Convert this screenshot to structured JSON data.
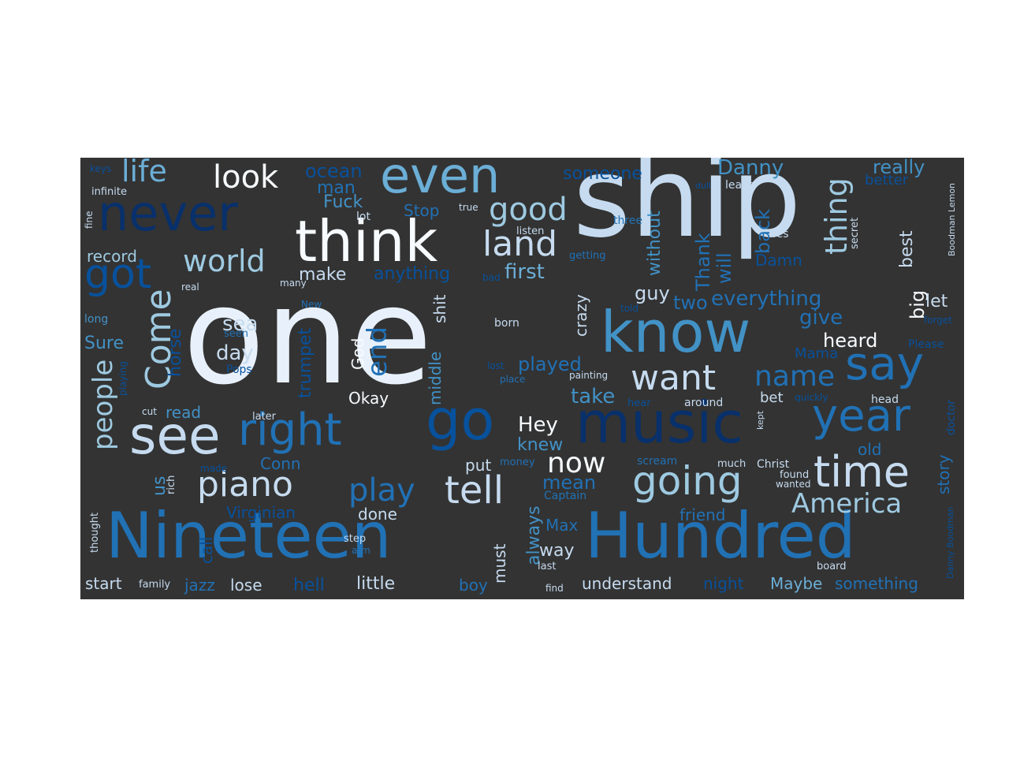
{
  "background": "#333333",
  "palette": {
    "a": "#e8f1fb",
    "b": "#c6dbef",
    "c": "#9ecae1",
    "d": "#6baed6",
    "e": "#4292c6",
    "f": "#2171b5",
    "g": "#08519c",
    "h": "#08306b",
    "w": "#f7fbff"
  },
  "words": [
    {
      "text": "one",
      "s": 170,
      "c": "a"
    },
    {
      "text": "ship",
      "s": 140,
      "c": "b"
    },
    {
      "text": "Nineteen",
      "s": 80,
      "c": "f"
    },
    {
      "text": "Hundred",
      "s": 80,
      "c": "f"
    },
    {
      "text": "think",
      "s": 72,
      "c": "w"
    },
    {
      "text": "music",
      "s": 72,
      "c": "h"
    },
    {
      "text": "know",
      "s": 72,
      "c": "e"
    },
    {
      "text": "never",
      "s": 62,
      "c": "h"
    },
    {
      "text": "even",
      "s": 62,
      "c": "d"
    },
    {
      "text": "go",
      "s": 70,
      "c": "g"
    },
    {
      "text": "see",
      "s": 66,
      "c": "b"
    },
    {
      "text": "right",
      "s": 56,
      "c": "f"
    },
    {
      "text": "year",
      "s": 56,
      "c": "f"
    },
    {
      "text": "say",
      "s": 58,
      "c": "f"
    },
    {
      "text": "time",
      "s": 54,
      "c": "b"
    },
    {
      "text": "going",
      "s": 50,
      "c": "c"
    },
    {
      "text": "tell",
      "s": 48,
      "c": "b"
    },
    {
      "text": "got",
      "s": 52,
      "c": "g"
    },
    {
      "text": "land",
      "s": 44,
      "c": "b"
    },
    {
      "text": "want",
      "s": 44,
      "c": "b"
    },
    {
      "text": "piano",
      "s": 44,
      "c": "b"
    },
    {
      "text": "good",
      "s": 40,
      "c": "c"
    },
    {
      "text": "look",
      "s": 40,
      "c": "w"
    },
    {
      "text": "life",
      "s": 38,
      "c": "d"
    },
    {
      "text": "world",
      "s": 38,
      "c": "c"
    },
    {
      "text": "play",
      "s": 40,
      "c": "f"
    },
    {
      "text": "Come",
      "s": 44,
      "c": "c"
    },
    {
      "text": "people",
      "s": 34,
      "c": "c"
    },
    {
      "text": "name",
      "s": 36,
      "c": "f"
    },
    {
      "text": "now",
      "s": 36,
      "c": "w"
    },
    {
      "text": "America",
      "s": 34,
      "c": "c"
    },
    {
      "text": "thing",
      "s": 38,
      "c": "c"
    },
    {
      "text": "end",
      "s": 34,
      "c": "f"
    },
    {
      "text": "Danny",
      "s": 26,
      "c": "e"
    },
    {
      "text": "really",
      "s": 24,
      "c": "e"
    },
    {
      "text": "ocean",
      "s": 24,
      "c": "g"
    },
    {
      "text": "someone",
      "s": 22,
      "c": "g"
    },
    {
      "text": "man",
      "s": 22,
      "c": "f"
    },
    {
      "text": "Fuck",
      "s": 22,
      "c": "e"
    },
    {
      "text": "Stop",
      "s": 20,
      "c": "f"
    },
    {
      "text": "record",
      "s": 20,
      "c": "c"
    },
    {
      "text": "make",
      "s": 22,
      "c": "b"
    },
    {
      "text": "anything",
      "s": 22,
      "c": "g"
    },
    {
      "text": "first",
      "s": 26,
      "c": "d"
    },
    {
      "text": "Thank",
      "s": 24,
      "c": "f"
    },
    {
      "text": "will",
      "s": 24,
      "c": "f"
    },
    {
      "text": "without",
      "s": 22,
      "c": "e"
    },
    {
      "text": "back",
      "s": 24,
      "c": "f"
    },
    {
      "text": "best",
      "s": 22,
      "c": "b"
    },
    {
      "text": "Damn",
      "s": 20,
      "c": "g"
    },
    {
      "text": "sea",
      "s": 26,
      "c": "b"
    },
    {
      "text": "day",
      "s": 26,
      "c": "b"
    },
    {
      "text": "trumpet",
      "s": 22,
      "c": "g"
    },
    {
      "text": "horse",
      "s": 22,
      "c": "g"
    },
    {
      "text": "Sure",
      "s": 22,
      "c": "e"
    },
    {
      "text": "guy",
      "s": 24,
      "c": "b"
    },
    {
      "text": "two",
      "s": 24,
      "c": "f"
    },
    {
      "text": "everything",
      "s": 26,
      "c": "f"
    },
    {
      "text": "give",
      "s": 26,
      "c": "f"
    },
    {
      "text": "heard",
      "s": 24,
      "c": "w"
    },
    {
      "text": "big",
      "s": 24,
      "c": "w"
    },
    {
      "text": "let",
      "s": 22,
      "c": "b"
    },
    {
      "text": "crazy",
      "s": 20,
      "c": "b"
    },
    {
      "text": "played",
      "s": 24,
      "c": "f"
    },
    {
      "text": "take",
      "s": 26,
      "c": "e"
    },
    {
      "text": "Hey",
      "s": 26,
      "c": "w"
    },
    {
      "text": "knew",
      "s": 22,
      "c": "e"
    },
    {
      "text": "mean",
      "s": 24,
      "c": "f"
    },
    {
      "text": "Okay",
      "s": 20,
      "c": "w"
    },
    {
      "text": "God",
      "s": 20,
      "c": "w"
    },
    {
      "text": "shit",
      "s": 20,
      "c": "b"
    },
    {
      "text": "middle",
      "s": 20,
      "c": "e"
    },
    {
      "text": "read",
      "s": 20,
      "c": "e"
    },
    {
      "text": "us",
      "s": 22,
      "c": "e"
    },
    {
      "text": "Conn",
      "s": 20,
      "c": "f"
    },
    {
      "text": "put",
      "s": 20,
      "c": "b"
    },
    {
      "text": "Virginian",
      "s": 20,
      "c": "g"
    },
    {
      "text": "done",
      "s": 20,
      "c": "b"
    },
    {
      "text": "call",
      "s": 20,
      "c": "g"
    },
    {
      "text": "always",
      "s": 22,
      "c": "e"
    },
    {
      "text": "way",
      "s": 22,
      "c": "b"
    },
    {
      "text": "Max",
      "s": 20,
      "c": "f"
    },
    {
      "text": "must",
      "s": 20,
      "c": "b"
    },
    {
      "text": "friend",
      "s": 20,
      "c": "f"
    },
    {
      "text": "old",
      "s": 20,
      "c": "f"
    },
    {
      "text": "story",
      "s": 20,
      "c": "f"
    },
    {
      "text": "start",
      "s": 20,
      "c": "b"
    },
    {
      "text": "jazz",
      "s": 20,
      "c": "f"
    },
    {
      "text": "lose",
      "s": 20,
      "c": "b"
    },
    {
      "text": "hell",
      "s": 22,
      "c": "g"
    },
    {
      "text": "little",
      "s": 22,
      "c": "b"
    },
    {
      "text": "boy",
      "s": 20,
      "c": "f"
    },
    {
      "text": "understand",
      "s": 20,
      "c": "b"
    },
    {
      "text": "night",
      "s": 20,
      "c": "g"
    },
    {
      "text": "Maybe",
      "s": 20,
      "c": "d"
    },
    {
      "text": "something",
      "s": 20,
      "c": "f"
    },
    {
      "text": "Mama",
      "s": 18,
      "c": "g"
    },
    {
      "text": "Please",
      "s": 14,
      "c": "g"
    },
    {
      "text": "scream",
      "s": 14,
      "c": "f"
    },
    {
      "text": "Christ",
      "s": 14,
      "c": "b"
    },
    {
      "text": "bet",
      "s": 18,
      "c": "b"
    },
    {
      "text": "doctor",
      "s": 14,
      "c": "g"
    },
    {
      "text": "head",
      "s": 14,
      "c": "b"
    },
    {
      "text": "Pops",
      "s": 14,
      "c": "g"
    },
    {
      "text": "born",
      "s": 14,
      "c": "b"
    },
    {
      "text": "later",
      "s": 13,
      "c": "b"
    },
    {
      "text": "infinite",
      "s": 13,
      "c": "b"
    },
    {
      "text": "keys",
      "s": 12,
      "c": "g"
    },
    {
      "text": "lot",
      "s": 14,
      "c": "b"
    },
    {
      "text": "listen",
      "s": 13,
      "c": "b"
    },
    {
      "text": "leave",
      "s": 14,
      "c": "b"
    },
    {
      "text": "true",
      "s": 12,
      "c": "b"
    },
    {
      "text": "three",
      "s": 14,
      "c": "f"
    },
    {
      "text": "getting",
      "s": 13,
      "c": "f"
    },
    {
      "text": "Yes",
      "s": 14,
      "c": "b"
    },
    {
      "text": "secret",
      "s": 13,
      "c": "b"
    },
    {
      "text": "Boodman Lemon",
      "s": 11,
      "c": "b"
    },
    {
      "text": "bad",
      "s": 12,
      "c": "g"
    },
    {
      "text": "real",
      "s": 12,
      "c": "b"
    },
    {
      "text": "many",
      "s": 12,
      "c": "b"
    },
    {
      "text": "New",
      "s": 12,
      "c": "f"
    },
    {
      "text": "long",
      "s": 14,
      "c": "e"
    },
    {
      "text": "fine",
      "s": 12,
      "c": "b"
    },
    {
      "text": "told",
      "s": 12,
      "c": "g"
    },
    {
      "text": "lost",
      "s": 12,
      "c": "g"
    },
    {
      "text": "place",
      "s": 12,
      "c": "f"
    },
    {
      "text": "painting",
      "s": 12,
      "c": "b"
    },
    {
      "text": "hear",
      "s": 13,
      "c": "g"
    },
    {
      "text": "around",
      "s": 14,
      "c": "b"
    },
    {
      "text": "quickly",
      "s": 12,
      "c": "g"
    },
    {
      "text": "kept",
      "s": 11,
      "c": "b"
    },
    {
      "text": "money",
      "s": 13,
      "c": "f"
    },
    {
      "text": "much",
      "s": 13,
      "c": "b"
    },
    {
      "text": "found",
      "s": 13,
      "c": "b"
    },
    {
      "text": "wanted",
      "s": 12,
      "c": "b"
    },
    {
      "text": "Captain",
      "s": 14,
      "c": "f"
    },
    {
      "text": "seen",
      "s": 13,
      "c": "f"
    },
    {
      "text": "cut",
      "s": 12,
      "c": "b"
    },
    {
      "text": "rich",
      "s": 13,
      "c": "b"
    },
    {
      "text": "made",
      "s": 12,
      "c": "g"
    },
    {
      "text": "thought",
      "s": 13,
      "c": "b"
    },
    {
      "text": "step",
      "s": 13,
      "c": "b"
    },
    {
      "text": "arm",
      "s": 12,
      "c": "f"
    },
    {
      "text": "last",
      "s": 13,
      "c": "b"
    },
    {
      "text": "find",
      "s": 12,
      "c": "b"
    },
    {
      "text": "board",
      "s": 13,
      "c": "b"
    },
    {
      "text": "family",
      "s": 13,
      "c": "b"
    },
    {
      "text": "playing",
      "s": 12,
      "c": "g"
    },
    {
      "text": "Danny Boodman",
      "s": 11,
      "c": "g"
    },
    {
      "text": "better",
      "s": 18,
      "c": "g"
    },
    {
      "text": "forget",
      "s": 12,
      "c": "g"
    },
    {
      "text": "dull",
      "s": 11,
      "c": "g"
    }
  ]
}
